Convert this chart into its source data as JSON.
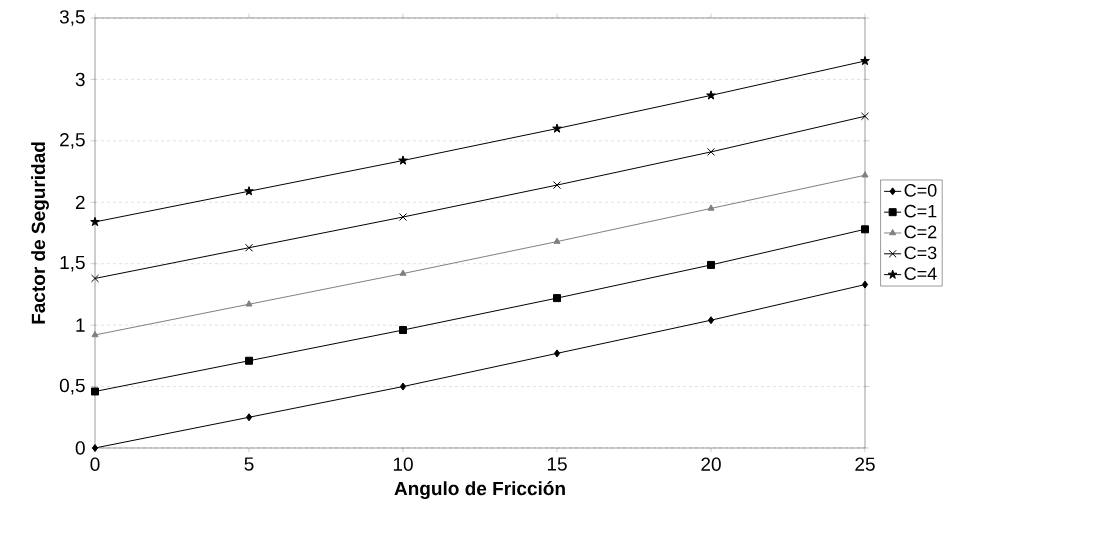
{
  "chart_data": {
    "type": "line",
    "xlabel": "Angulo de Fricción",
    "ylabel": "Factor de Seguridad",
    "x": [
      0,
      5,
      10,
      15,
      20,
      25
    ],
    "series": [
      {
        "name": "C=0",
        "color": "#000000",
        "marker": "diamond",
        "values": [
          0,
          0.25,
          0.5,
          0.77,
          1.04,
          1.33
        ]
      },
      {
        "name": "C=1",
        "color": "#000000",
        "marker": "square",
        "values": [
          0.46,
          0.71,
          0.96,
          1.22,
          1.49,
          1.78
        ]
      },
      {
        "name": "C=2",
        "color": "#808080",
        "marker": "triangle",
        "values": [
          0.92,
          1.17,
          1.42,
          1.68,
          1.95,
          2.22
        ]
      },
      {
        "name": "C=3",
        "color": "#000000",
        "marker": "cross",
        "values": [
          1.38,
          1.63,
          1.88,
          2.14,
          2.41,
          2.7
        ]
      },
      {
        "name": "C=4",
        "color": "#000000",
        "marker": "star",
        "values": [
          1.84,
          2.09,
          2.34,
          2.6,
          2.87,
          3.15
        ]
      }
    ],
    "xlim": [
      0,
      25
    ],
    "xticks": [
      0,
      5,
      10,
      15,
      20,
      25
    ],
    "ylim": [
      0,
      3.5
    ],
    "yticks": [
      0,
      {
        "value": 0.5,
        "label": "0,5"
      },
      1,
      {
        "value": 1.5,
        "label": "1,5"
      },
      2,
      {
        "value": 2.5,
        "label": "2,5"
      },
      3,
      {
        "value": 3.5,
        "label": "3,5"
      }
    ],
    "grid": "y",
    "legend": "right",
    "line_style": "solid"
  }
}
